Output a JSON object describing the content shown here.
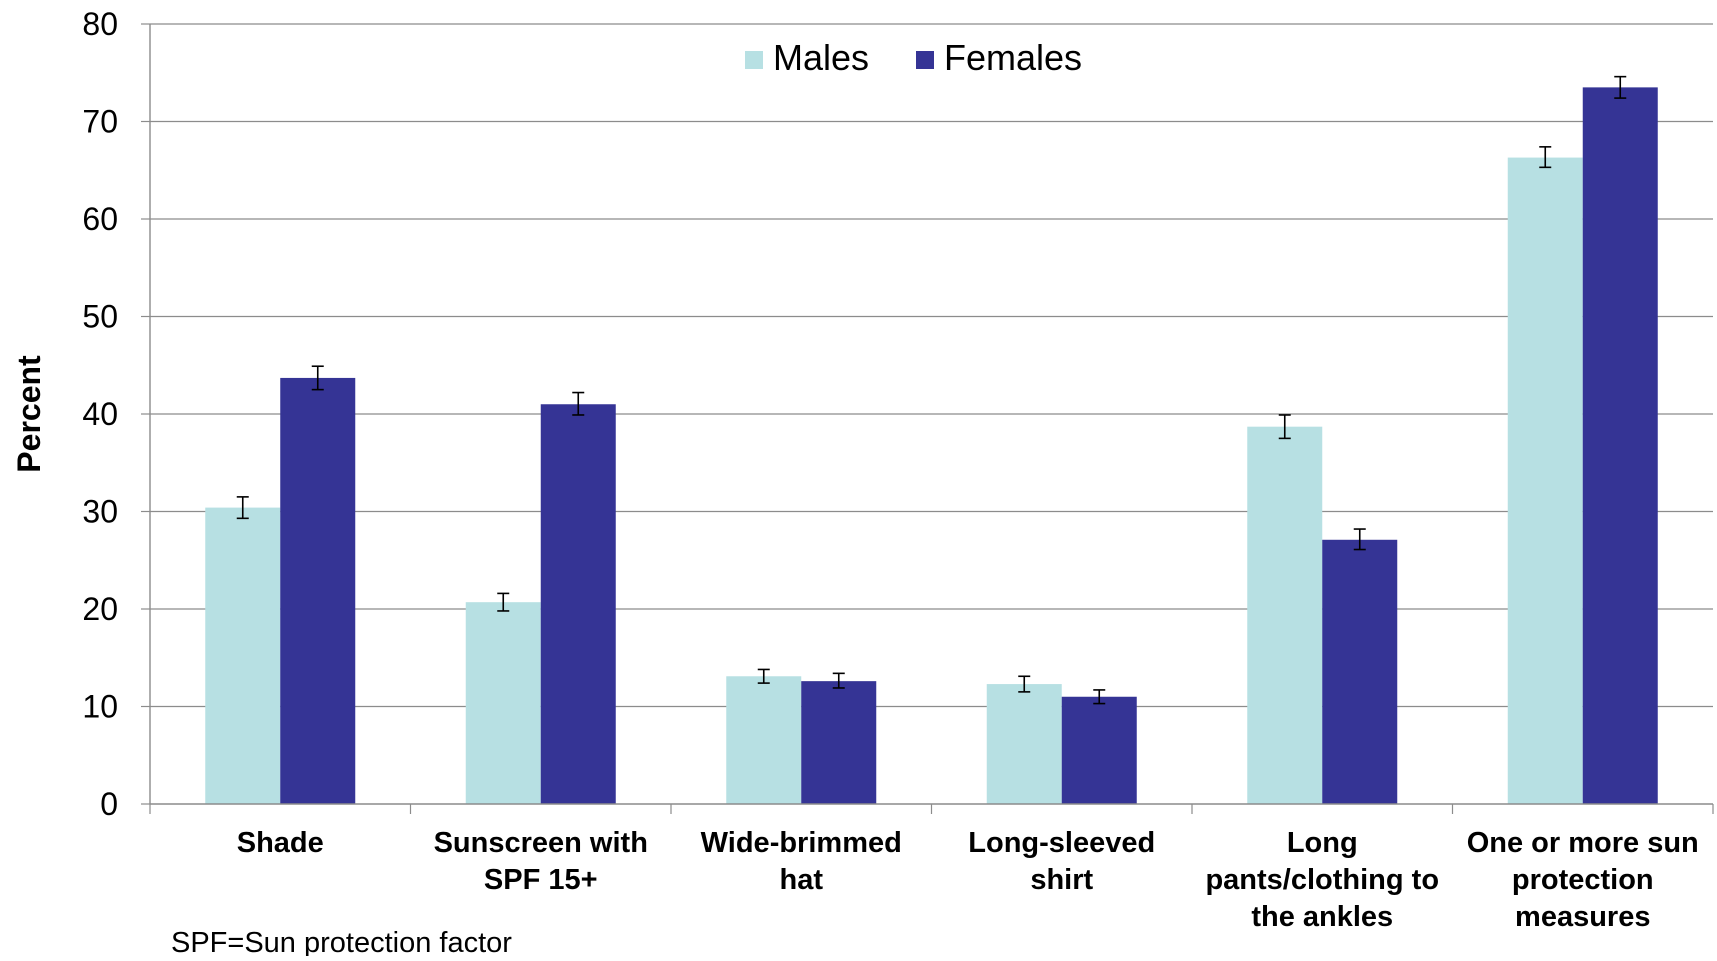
{
  "chart_data": {
    "type": "bar",
    "title": "",
    "xlabel": "",
    "ylabel": "Percent",
    "ylim": [
      0,
      80
    ],
    "yticks": [
      0,
      10,
      20,
      30,
      40,
      50,
      60,
      70,
      80
    ],
    "grid": true,
    "legend_position": "top-center",
    "categories": [
      [
        "Shade"
      ],
      [
        "Sunscreen with",
        "SPF 15+"
      ],
      [
        "Wide-brimmed",
        "hat"
      ],
      [
        "Long-sleeved",
        "shirt"
      ],
      [
        "Long",
        "pants/clothing to",
        "the ankles"
      ],
      [
        "One or more sun",
        "protection",
        "measures"
      ]
    ],
    "series": [
      {
        "name": "Males",
        "color": "#b7e0e3",
        "values": [
          30.4,
          20.7,
          13.1,
          12.3,
          38.7,
          66.3
        ],
        "error_low": [
          29.3,
          19.8,
          12.4,
          11.5,
          37.5,
          65.3
        ],
        "error_high": [
          31.5,
          21.6,
          13.8,
          13.1,
          39.9,
          67.4
        ]
      },
      {
        "name": "Females",
        "color": "#353495",
        "values": [
          43.7,
          41.0,
          12.6,
          11.0,
          27.1,
          73.5
        ],
        "error_low": [
          42.5,
          39.9,
          11.9,
          10.3,
          26.1,
          72.4
        ],
        "error_high": [
          44.9,
          42.2,
          13.4,
          11.7,
          28.2,
          74.6
        ]
      }
    ],
    "footnote": "SPF=Sun protection factor"
  }
}
